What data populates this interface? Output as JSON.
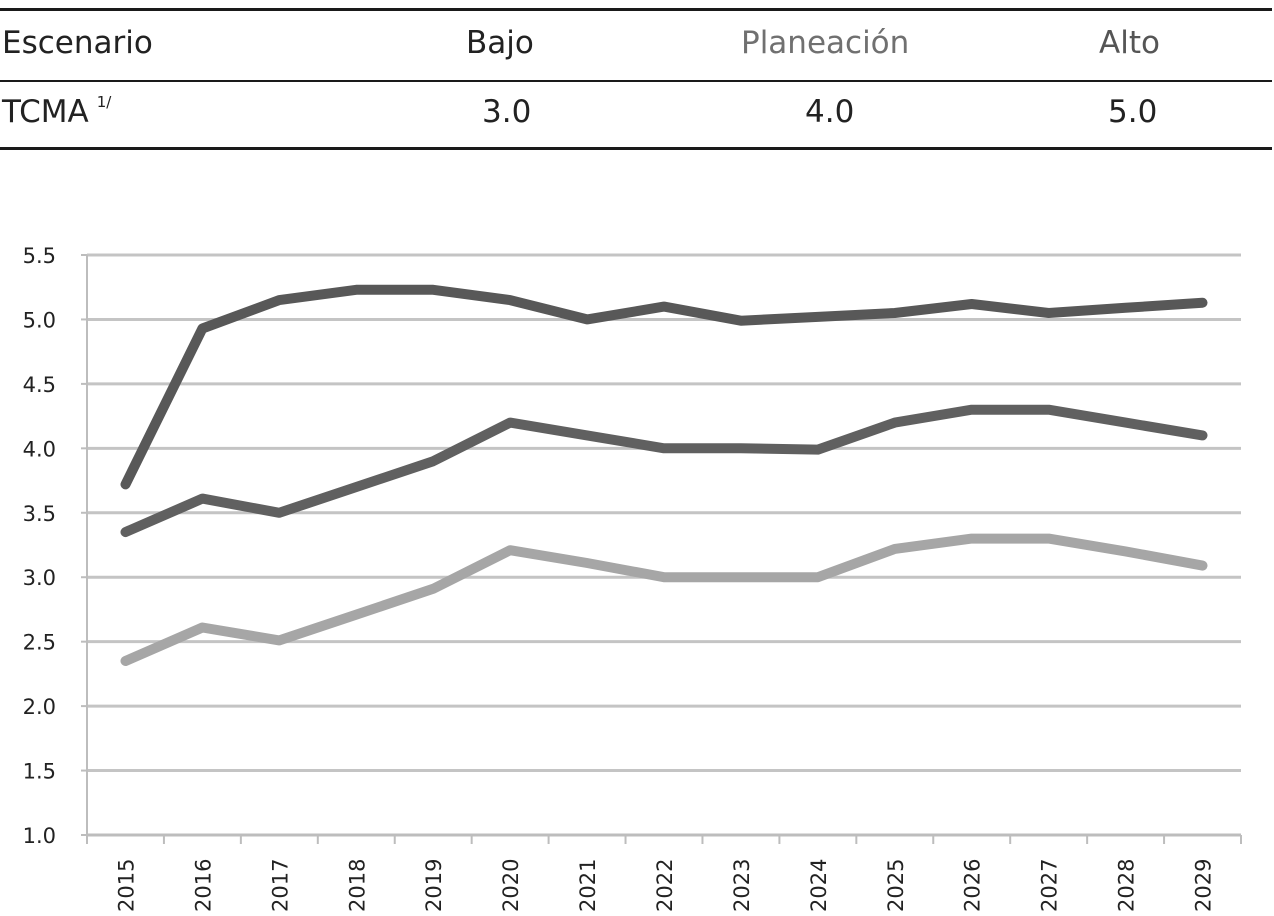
{
  "table": {
    "header": {
      "label": "Escenario",
      "bajo": "Bajo",
      "planeacion": "Planeación",
      "alto": "Alto"
    },
    "row": {
      "label": "TCMA",
      "footnote": "1/",
      "bajo": "3.0",
      "planeacion": "4.0",
      "alto": "5.0"
    }
  },
  "chart_data": {
    "type": "line",
    "title": "",
    "xlabel": "",
    "ylabel": "",
    "ylim": [
      1.0,
      5.5
    ],
    "y_ticks": [
      "1.0",
      "1.5",
      "2.0",
      "2.5",
      "3.0",
      "3.5",
      "4.0",
      "4.5",
      "5.0",
      "5.5"
    ],
    "grid": true,
    "legend": "none",
    "categories": [
      "2015",
      "2016",
      "2017",
      "2018",
      "2019",
      "2020",
      "2021",
      "2022",
      "2023",
      "2024",
      "2025",
      "2026",
      "2027",
      "2028",
      "2029"
    ],
    "series": [
      {
        "values": [
          3.72,
          4.93,
          5.15,
          5.23,
          5.23,
          5.15,
          5.0,
          5.1,
          4.99,
          5.02,
          5.05,
          5.12,
          5.05,
          5.09,
          5.13
        ],
        "color": "#585858"
      },
      {
        "values": [
          3.35,
          3.61,
          3.5,
          3.7,
          3.9,
          4.2,
          4.1,
          4.0,
          4.0,
          3.99,
          4.2,
          4.3,
          4.3,
          4.2,
          4.1
        ],
        "color": "#606060"
      },
      {
        "values": [
          2.35,
          2.61,
          2.51,
          2.71,
          2.91,
          3.21,
          3.11,
          3.0,
          3.0,
          3.0,
          3.22,
          3.3,
          3.3,
          3.2,
          3.09
        ],
        "color": "#a6a6a6"
      }
    ]
  }
}
